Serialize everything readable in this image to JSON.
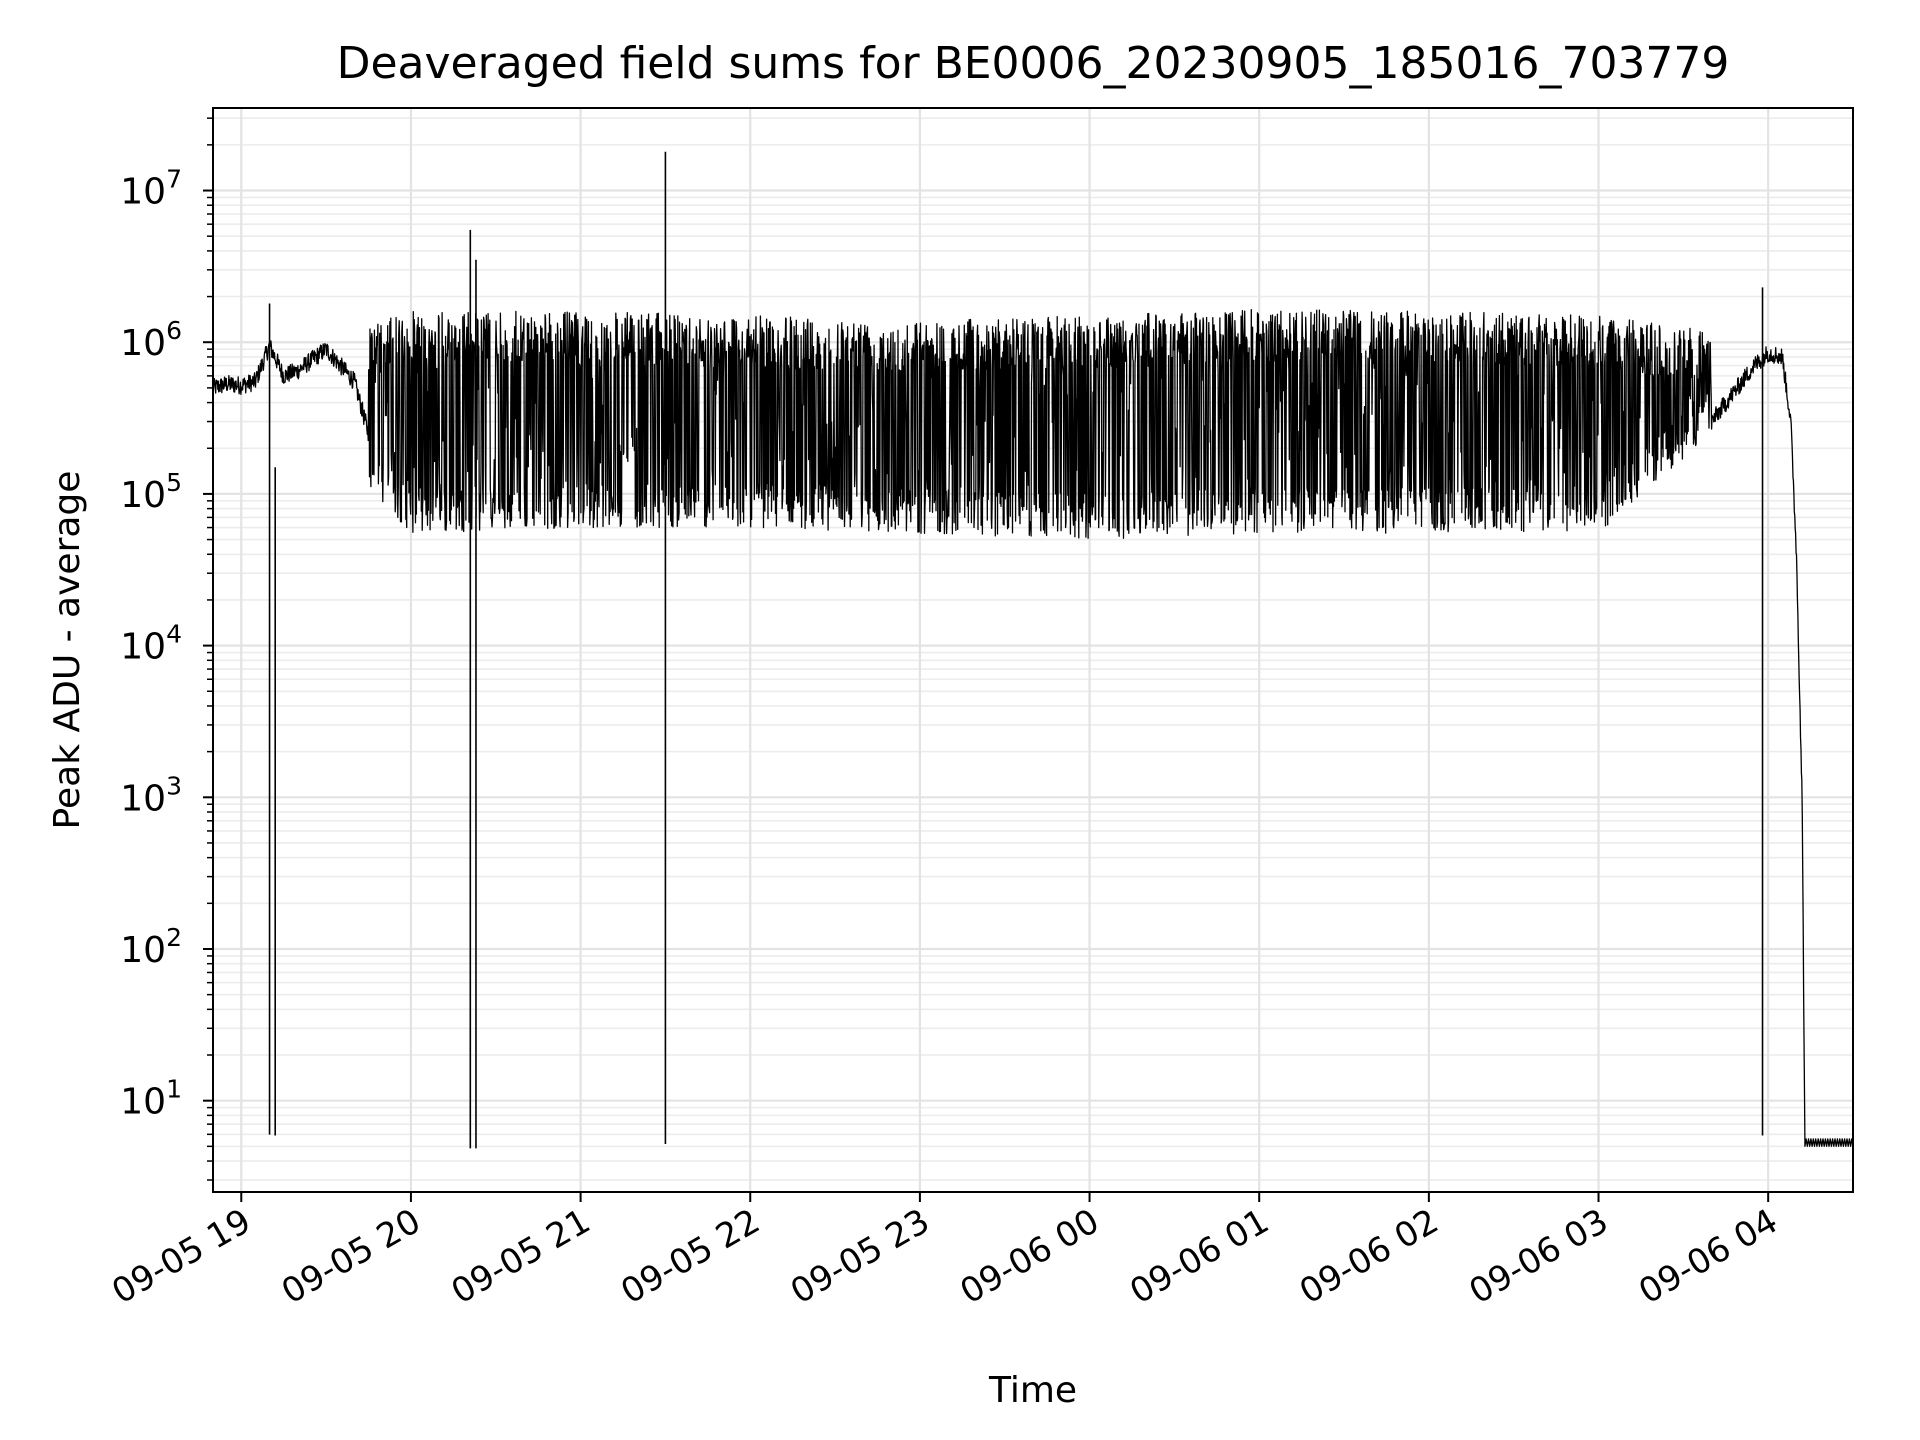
{
  "chart_data": {
    "type": "line",
    "title": "Deaveraged field sums for BE0006_20230905_185016_703779",
    "xlabel": "Time",
    "ylabel": "Peak ADU - average",
    "yscale": "log",
    "grid": true,
    "xlim": [
      "2023-09-05 18:50",
      "2023-09-06 04:30"
    ],
    "ylim": [
      2.5,
      35000000
    ],
    "x_ticks": [
      "09-05 19",
      "09-05 20",
      "09-05 21",
      "09-05 22",
      "09-05 23",
      "09-06 00",
      "09-06 01",
      "09-06 02",
      "09-06 03",
      "09-06 04"
    ],
    "y_ticks": [
      {
        "base": "10",
        "exp": "1",
        "value": 10
      },
      {
        "base": "10",
        "exp": "2",
        "value": 100
      },
      {
        "base": "10",
        "exp": "3",
        "value": 1000
      },
      {
        "base": "10",
        "exp": "4",
        "value": 10000
      },
      {
        "base": "10",
        "exp": "5",
        "value": 100000
      },
      {
        "base": "10",
        "exp": "6",
        "value": 1000000
      },
      {
        "base": "10",
        "exp": "7",
        "value": 10000000
      }
    ],
    "series": [
      {
        "color": "#000000",
        "points": [
          [
            "2023-09-05 18:50",
            500000
          ],
          [
            "2023-09-05 18:55",
            530000
          ],
          [
            "2023-09-05 19:00",
            520000
          ],
          [
            "2023-09-05 19:05",
            550000
          ],
          [
            "2023-09-05 19:10",
            950000
          ],
          [
            "2023-09-05 19:15",
            600000
          ],
          [
            "2023-09-05 19:20",
            650000
          ],
          [
            "2023-09-05 19:30",
            900000
          ],
          [
            "2023-09-05 19:40",
            550000
          ],
          [
            "2023-09-05 19:45",
            250000
          ],
          [
            "2023-09-05 19:50",
            120000
          ],
          [
            "2023-09-05 20:00",
            70000
          ],
          [
            "2023-09-05 20:30",
            70000
          ],
          [
            "2023-09-05 21:00",
            90000
          ],
          [
            "2023-09-05 21:30",
            150000
          ],
          [
            "2023-09-05 22:00",
            110000
          ],
          [
            "2023-09-05 22:30",
            90000
          ],
          [
            "2023-09-05 23:00",
            80000
          ],
          [
            "2023-09-05 23:30",
            70000
          ],
          [
            "2023-09-06 00:00",
            65000
          ],
          [
            "2023-09-06 00:30",
            70000
          ],
          [
            "2023-09-06 01:00",
            75000
          ],
          [
            "2023-09-06 01:30",
            80000
          ],
          [
            "2023-09-06 02:00",
            75000
          ],
          [
            "2023-09-06 02:30",
            70000
          ],
          [
            "2023-09-06 03:00",
            70000
          ],
          [
            "2023-09-06 03:20",
            110000
          ],
          [
            "2023-09-06 03:40",
            300000
          ],
          [
            "2023-09-06 03:55",
            700000
          ],
          [
            "2023-09-06 04:00",
            850000
          ],
          [
            "2023-09-06 04:05",
            800000
          ],
          [
            "2023-09-06 04:08",
            300000
          ],
          [
            "2023-09-06 04:10",
            40000
          ],
          [
            "2023-09-06 04:12",
            1000
          ],
          [
            "2023-09-06 04:13",
            5
          ],
          [
            "2023-09-06 04:30",
            5
          ]
        ],
        "band_upper": [
          [
            "2023-09-05 19:45",
            1300000
          ],
          [
            "2023-09-05 20:00",
            1600000
          ],
          [
            "2023-09-05 21:00",
            1600000
          ],
          [
            "2023-09-05 22:00",
            1500000
          ],
          [
            "2023-09-05 23:00",
            1400000
          ],
          [
            "2023-09-06 00:00",
            1500000
          ],
          [
            "2023-09-06 01:00",
            1650000
          ],
          [
            "2023-09-06 02:00",
            1600000
          ],
          [
            "2023-09-06 03:00",
            1500000
          ],
          [
            "2023-09-06 03:40",
            1200000
          ]
        ],
        "band_lower": [
          [
            "2023-09-05 19:45",
            110000
          ],
          [
            "2023-09-05 20:00",
            55000
          ],
          [
            "2023-09-05 21:00",
            60000
          ],
          [
            "2023-09-05 22:00",
            60000
          ],
          [
            "2023-09-05 23:00",
            55000
          ],
          [
            "2023-09-06 00:00",
            50000
          ],
          [
            "2023-09-06 01:00",
            55000
          ],
          [
            "2023-09-06 02:00",
            55000
          ],
          [
            "2023-09-06 03:00",
            55000
          ],
          [
            "2023-09-06 03:40",
            250000
          ]
        ],
        "spikes": [
          [
            "2023-09-05 19:10",
            1800000
          ],
          [
            "2023-09-05 19:12",
            150000
          ],
          [
            "2023-09-05 20:21",
            5500000
          ],
          [
            "2023-09-05 20:23",
            3500000
          ],
          [
            "2023-09-05 21:30",
            18000000
          ],
          [
            "2023-09-06 03:58",
            2300000
          ]
        ]
      }
    ]
  }
}
